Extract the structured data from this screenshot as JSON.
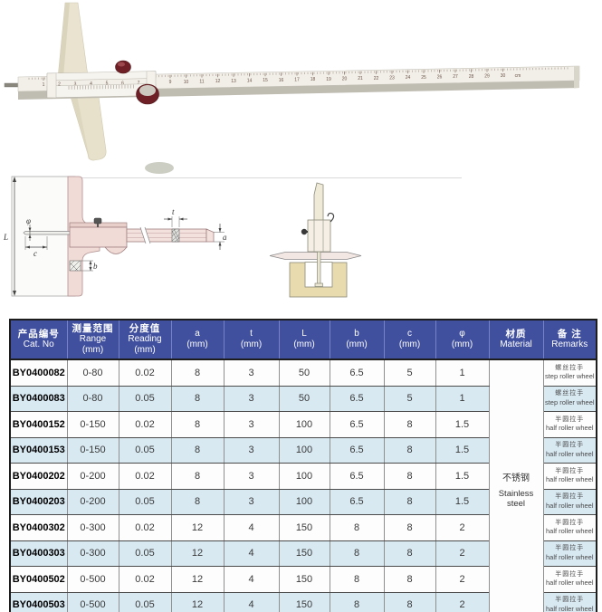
{
  "colors": {
    "header_bg": "#40509f",
    "header_text": "#ffffff",
    "row_bg": "#fdfdfd",
    "row_alt_bg": "#d8e9f2",
    "table_border": "#1d1d1d",
    "caliper_cream": "#e9e3cf",
    "diagram_pink": "#f1dbd7",
    "workpiece_tan": "#e8dbae",
    "knob_maroon": "#6e2026"
  },
  "photo": {
    "ruler_numbers": [
      1,
      2,
      3,
      4,
      5,
      6,
      7,
      8,
      9,
      10,
      11,
      12,
      13,
      14,
      15,
      16,
      17,
      18,
      19,
      20,
      21,
      22,
      23,
      24,
      25,
      26,
      27,
      28,
      29,
      30
    ],
    "ruler_unit": "cm"
  },
  "diagram": {
    "labels": {
      "L": "L",
      "phi": "φ",
      "c": "c",
      "b": "b",
      "t": "t",
      "a": "a"
    }
  },
  "table": {
    "headers": [
      {
        "lines": [
          "产品编号",
          "Cat. No"
        ]
      },
      {
        "lines": [
          "测量范围",
          "Range",
          "(mm)"
        ]
      },
      {
        "lines": [
          "分度值",
          "Reading",
          "(mm)"
        ]
      },
      {
        "lines": [
          "a",
          "(mm)"
        ]
      },
      {
        "lines": [
          "t",
          "(mm)"
        ]
      },
      {
        "lines": [
          "L",
          "(mm)"
        ]
      },
      {
        "lines": [
          "b",
          "(mm)"
        ]
      },
      {
        "lines": [
          "c",
          "(mm)"
        ]
      },
      {
        "lines": [
          "φ",
          "(mm)"
        ]
      },
      {
        "lines": [
          "材质",
          "Material"
        ]
      },
      {
        "lines": [
          "备 注",
          "Remarks"
        ]
      }
    ],
    "material": {
      "zh": "不锈钢",
      "en": "Stainless steel"
    },
    "rows": [
      {
        "cat_no": "BY0400082",
        "range": "0-80",
        "reading": "0.02",
        "a": "8",
        "t": "3",
        "L": "50",
        "b": "6.5",
        "c": "5",
        "phi": "1",
        "remark_zh": "螺丝拉手",
        "remark_en": "step roller wheel"
      },
      {
        "cat_no": "BY0400083",
        "range": "0-80",
        "reading": "0.05",
        "a": "8",
        "t": "3",
        "L": "50",
        "b": "6.5",
        "c": "5",
        "phi": "1",
        "remark_zh": "螺丝拉手",
        "remark_en": "step roller wheel"
      },
      {
        "cat_no": "BY0400152",
        "range": "0-150",
        "reading": "0.02",
        "a": "8",
        "t": "3",
        "L": "100",
        "b": "6.5",
        "c": "8",
        "phi": "1.5",
        "remark_zh": "半圆拉手",
        "remark_en": "half roller wheel"
      },
      {
        "cat_no": "BY0400153",
        "range": "0-150",
        "reading": "0.05",
        "a": "8",
        "t": "3",
        "L": "100",
        "b": "6.5",
        "c": "8",
        "phi": "1.5",
        "remark_zh": "半圆拉手",
        "remark_en": "half roller wheel"
      },
      {
        "cat_no": "BY0400202",
        "range": "0-200",
        "reading": "0.02",
        "a": "8",
        "t": "3",
        "L": "100",
        "b": "6.5",
        "c": "8",
        "phi": "1.5",
        "remark_zh": "半圆拉手",
        "remark_en": "half roller wheel"
      },
      {
        "cat_no": "BY0400203",
        "range": "0-200",
        "reading": "0.05",
        "a": "8",
        "t": "3",
        "L": "100",
        "b": "6.5",
        "c": "8",
        "phi": "1.5",
        "remark_zh": "半圆拉手",
        "remark_en": "half roller wheel"
      },
      {
        "cat_no": "BY0400302",
        "range": "0-300",
        "reading": "0.02",
        "a": "12",
        "t": "4",
        "L": "150",
        "b": "8",
        "c": "8",
        "phi": "2",
        "remark_zh": "半圆拉手",
        "remark_en": "half roller wheel"
      },
      {
        "cat_no": "BY0400303",
        "range": "0-300",
        "reading": "0.05",
        "a": "12",
        "t": "4",
        "L": "150",
        "b": "8",
        "c": "8",
        "phi": "2",
        "remark_zh": "半圆拉手",
        "remark_en": "half roller wheel"
      },
      {
        "cat_no": "BY0400502",
        "range": "0-500",
        "reading": "0.02",
        "a": "12",
        "t": "4",
        "L": "150",
        "b": "8",
        "c": "8",
        "phi": "2",
        "remark_zh": "半圆拉手",
        "remark_en": "half roller wheel"
      },
      {
        "cat_no": "BY0400503",
        "range": "0-500",
        "reading": "0.05",
        "a": "12",
        "t": "4",
        "L": "150",
        "b": "8",
        "c": "8",
        "phi": "2",
        "remark_zh": "半圆拉手",
        "remark_en": "half roller wheel"
      }
    ]
  }
}
